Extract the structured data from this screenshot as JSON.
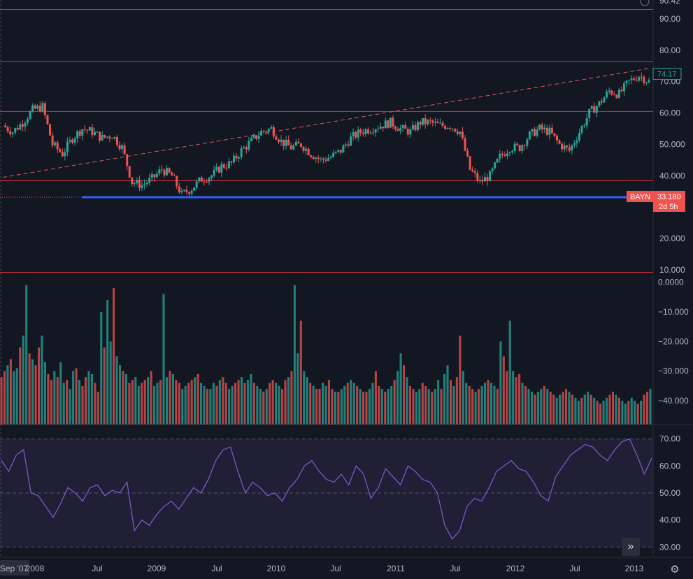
{
  "symbol": "BAYN",
  "colors": {
    "up": "#26a69a",
    "down": "#ef5350",
    "rsi": "#7e57c2",
    "level": "#f23645",
    "support": "#2962ff",
    "trend": "#e05a5a"
  },
  "price_axis": {
    "top_value_partial": "90.42",
    "last_price": "74.17",
    "symbol_badge": "BAYN",
    "badge_price": "33.180",
    "badge_countdown": "2d 5h"
  },
  "time_axis": {
    "labels": [
      "Sep '07",
      "2008",
      "Jul",
      "2009",
      "Jul",
      "2010",
      "Jul",
      "2011",
      "Jul",
      "2012",
      "Jul",
      "2013"
    ]
  },
  "chart_data": [
    {
      "type": "line",
      "title": "",
      "description": "Price candlesticks (weekly), approximate close values",
      "y_ticks": [
        "90.00",
        "80.00",
        "70.00",
        "60.00",
        "50.000",
        "40.000",
        "30.000",
        "20.000",
        "10.000"
      ],
      "ylim": [
        8,
        96
      ],
      "x": [
        "2007-09",
        "2007-10",
        "2007-11",
        "2007-12",
        "2008-01",
        "2008-02",
        "2008-03",
        "2008-04",
        "2008-05",
        "2008-06",
        "2008-07",
        "2008-08",
        "2008-09",
        "2008-10",
        "2008-11",
        "2008-12",
        "2009-01",
        "2009-02",
        "2009-03",
        "2009-04",
        "2009-05",
        "2009-06",
        "2009-07",
        "2009-08",
        "2009-09",
        "2009-10",
        "2009-11",
        "2009-12",
        "2010-01",
        "2010-02",
        "2010-03",
        "2010-04",
        "2010-05",
        "2010-06",
        "2010-07",
        "2010-08",
        "2010-09",
        "2010-10",
        "2010-11",
        "2010-12",
        "2011-01",
        "2011-02",
        "2011-03",
        "2011-04",
        "2011-05",
        "2011-06",
        "2011-07",
        "2011-08",
        "2011-09",
        "2011-10",
        "2011-11",
        "2011-12",
        "2012-01",
        "2012-02",
        "2012-03",
        "2012-04",
        "2012-05",
        "2012-06",
        "2012-07",
        "2012-08",
        "2012-09",
        "2012-10",
        "2012-11",
        "2012-12",
        "2013-01",
        "2013-02"
      ],
      "values": [
        56,
        54,
        57,
        61,
        62,
        50,
        47,
        52,
        55,
        54,
        52,
        53,
        49,
        38,
        37,
        39,
        42,
        40,
        34,
        36,
        39,
        40,
        43,
        44,
        48,
        51,
        54,
        55,
        51,
        49,
        50,
        47,
        45,
        46,
        48,
        52,
        54,
        55,
        56,
        57,
        55,
        54,
        57,
        57,
        56,
        56,
        54,
        42,
        38,
        40,
        46,
        49,
        49,
        53,
        55,
        54,
        50,
        48,
        54,
        60,
        63,
        67,
        66,
        70,
        72,
        70
      ],
      "horizontal_levels": [
        93,
        76.5,
        60.5,
        38.4,
        9.2
      ],
      "support_line": 33.18,
      "trendline": {
        "start": [
          "2007-09",
          39.5
        ],
        "end": [
          "2013-02",
          74.2
        ]
      }
    },
    {
      "type": "bar",
      "title": "",
      "description": "Volume-style oscillator bars",
      "y_ticks": [
        "0.0000",
        "−10.000",
        "−20.000",
        "−30.000",
        "−40.000"
      ],
      "ylim": [
        -48,
        2
      ],
      "values": [
        -32,
        -30,
        -28,
        -26,
        -30,
        -29,
        -22,
        -18,
        -1,
        -24,
        -26,
        -28,
        -22,
        -18,
        -27,
        -31,
        -33,
        -30,
        -32,
        -27,
        -34,
        -33,
        -36,
        -30,
        -29,
        -33,
        -35,
        -32,
        -30,
        -31,
        -34,
        -37,
        -10,
        -22,
        -6,
        -20,
        -2,
        -25,
        -28,
        -30,
        -31,
        -34,
        -33,
        -32,
        -35,
        -34,
        -33,
        -32,
        -30,
        -35,
        -34,
        -33,
        -4,
        -32,
        -30,
        -31,
        -33,
        -34,
        -36,
        -35,
        -34,
        -33,
        -32,
        -31,
        -34,
        -35,
        -36,
        -36,
        -34,
        -35,
        -33,
        -32,
        -34,
        -36,
        -35,
        -34,
        -33,
        -32,
        -34,
        -33,
        -31,
        -34,
        -35,
        -36,
        -37,
        -36,
        -34,
        -33,
        -34,
        -35,
        -36,
        -33,
        -32,
        -30,
        -1,
        -24,
        -13,
        -30,
        -32,
        -34,
        -35,
        -36,
        -36,
        -34,
        -35,
        -33,
        -36,
        -37,
        -37,
        -36,
        -35,
        -34,
        -33,
        -34,
        -35,
        -36,
        -37,
        -37,
        -36,
        -34,
        -30,
        -35,
        -36,
        -37,
        -36,
        -35,
        -33,
        -30,
        -24,
        -28,
        -32,
        -35,
        -36,
        -37,
        -36,
        -34,
        -35,
        -36,
        -37,
        -36,
        -33,
        -36,
        -31,
        -28,
        -33,
        -35,
        -32,
        -18,
        -30,
        -34,
        -35,
        -36,
        -37,
        -36,
        -35,
        -34,
        -33,
        -34,
        -35,
        -36,
        -20,
        -25,
        -30,
        -13,
        -30,
        -32,
        -31,
        -34,
        -35,
        -36,
        -37,
        -38,
        -37,
        -36,
        -35,
        -36,
        -37,
        -38,
        -39,
        -38,
        -37,
        -36,
        -37,
        -38,
        -39,
        -40,
        -39,
        -38,
        -37,
        -38,
        -39,
        -40,
        -41,
        -40,
        -39,
        -38,
        -37,
        -38,
        -39,
        -40,
        -41,
        -40,
        -39,
        -40,
        -41,
        -40,
        -38,
        -37,
        -36
      ],
      "series_colors_pattern": "alternating red/teal by candle direction"
    },
    {
      "type": "line",
      "title": "",
      "description": "RSI-style oscillator",
      "y_ticks": [
        "70.00",
        "60.00",
        "50.00",
        "40.00",
        "30.00"
      ],
      "ylim": [
        28,
        72
      ],
      "band": [
        30,
        70
      ],
      "midline": 50,
      "values": [
        62,
        58,
        64,
        66,
        50,
        49,
        45,
        41,
        46,
        52,
        50,
        47,
        52,
        53,
        49,
        51,
        50,
        54,
        36,
        40,
        38,
        42,
        45,
        47,
        44,
        48,
        52,
        50,
        55,
        62,
        66,
        67,
        58,
        50,
        54,
        52,
        49,
        50,
        47,
        52,
        55,
        60,
        62,
        58,
        55,
        54,
        57,
        53,
        60,
        57,
        48,
        52,
        59,
        56,
        53,
        60,
        58,
        55,
        54,
        50,
        38,
        33,
        36,
        45,
        48,
        47,
        52,
        58,
        60,
        62,
        59,
        58,
        54,
        49,
        47,
        56,
        60,
        64,
        66,
        68,
        67,
        64,
        62,
        66,
        69,
        70,
        64,
        57,
        63
      ]
    }
  ]
}
